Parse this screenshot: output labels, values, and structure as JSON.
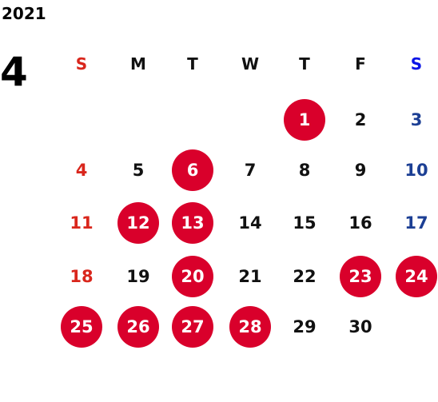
{
  "calendar": {
    "year": "2021",
    "month": "4",
    "weekdays": [
      "S",
      "M",
      "T",
      "W",
      "T",
      "F",
      "S"
    ],
    "weeks": [
      [
        null,
        null,
        null,
        null,
        1,
        2,
        3
      ],
      [
        4,
        5,
        6,
        7,
        8,
        9,
        10
      ],
      [
        11,
        12,
        13,
        14,
        15,
        16,
        17
      ],
      [
        18,
        19,
        20,
        21,
        22,
        23,
        24
      ],
      [
        25,
        26,
        27,
        28,
        29,
        30,
        null
      ]
    ],
    "marked": [
      1,
      6,
      12,
      13,
      20,
      23,
      24,
      25,
      26,
      27,
      28
    ],
    "colors": {
      "sunday": "#d9261c",
      "saturday": "#1c3f94",
      "saturday_header": "#0a14e6",
      "weekday": "#111111",
      "mark": "#d9002b",
      "mark_text": "#ffffff"
    }
  }
}
